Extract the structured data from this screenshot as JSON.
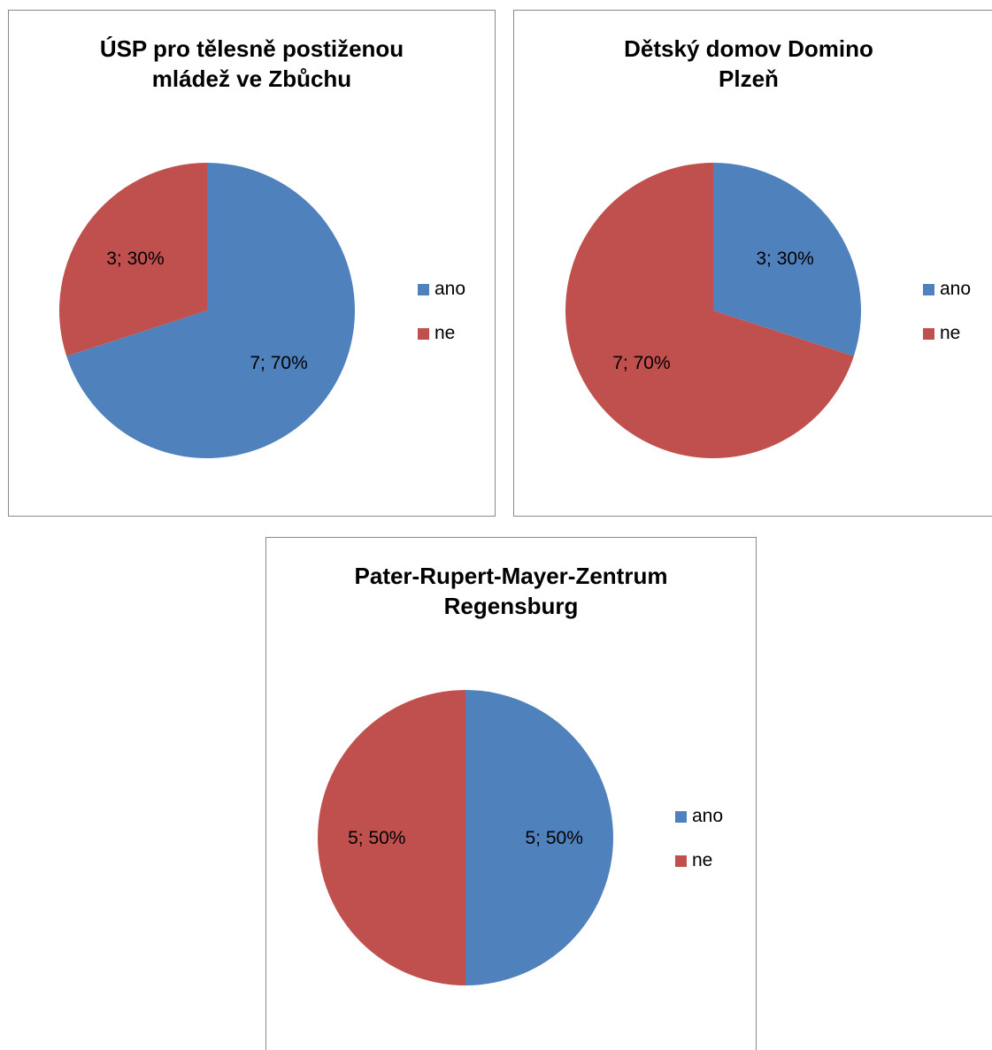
{
  "chart_data": [
    {
      "type": "pie",
      "title_lines": [
        "ÚSP pro tělesně postiženou",
        "mládež ve Zbůchu"
      ],
      "categories": [
        "ano",
        "ne"
      ],
      "values": [
        7,
        3
      ],
      "data_labels": [
        "7; 70%",
        "3; 30%"
      ],
      "colors": [
        "#4f81bd",
        "#c0504d"
      ],
      "legend": {
        "position": "right",
        "entries": [
          "ano",
          "ne"
        ]
      }
    },
    {
      "type": "pie",
      "title_lines": [
        "Dětský domov Domino",
        "Plzeň"
      ],
      "categories": [
        "ano",
        "ne"
      ],
      "values": [
        3,
        7
      ],
      "data_labels": [
        "3; 30%",
        "7; 70%"
      ],
      "colors": [
        "#4f81bd",
        "#c0504d"
      ],
      "legend": {
        "position": "right",
        "entries": [
          "ano",
          "ne"
        ]
      }
    },
    {
      "type": "pie",
      "title_lines": [
        "Pater-Rupert-Mayer-Zentrum",
        "Regensburg"
      ],
      "categories": [
        "ano",
        "ne"
      ],
      "values": [
        5,
        5
      ],
      "data_labels": [
        "5; 50%",
        "5; 50%"
      ],
      "colors": [
        "#4f81bd",
        "#c0504d"
      ],
      "legend": {
        "position": "right",
        "entries": [
          "ano",
          "ne"
        ]
      }
    }
  ]
}
